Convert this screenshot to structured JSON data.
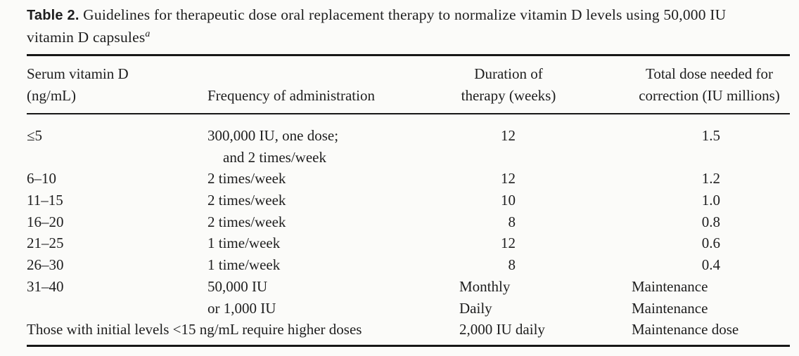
{
  "title": {
    "label": "Table 2.",
    "line1_rest": " Guidelines for therapeutic dose oral replacement therapy to normalize vitamin D levels using 50,000 IU",
    "line2": "vitamin D capsules",
    "footnote_marker": "a"
  },
  "table": {
    "headers": {
      "col1_line1": "Serum vitamin D",
      "col1_line2": "(ng/mL)",
      "col2": "Frequency of administration",
      "col3_line1": "Duration of",
      "col3_line2": "therapy (weeks)",
      "col4_line1": "Total dose needed for",
      "col4_line2": "correction (IU millions)"
    },
    "rows": [
      {
        "serum": "≤5",
        "frequency": "300,000 IU, one dose;",
        "duration": "12",
        "total": "1.5"
      },
      {
        "serum": "",
        "frequency": "and 2 times/week",
        "duration": "",
        "total": ""
      },
      {
        "serum": "6–10",
        "frequency": "2 times/week",
        "duration": "12",
        "total": "1.2"
      },
      {
        "serum": "11–15",
        "frequency": "2 times/week",
        "duration": "10",
        "total": "1.0"
      },
      {
        "serum": "16–20",
        "frequency": "2 times/week",
        "duration": "8",
        "total": "0.8"
      },
      {
        "serum": "21–25",
        "frequency": "1 time/week",
        "duration": "12",
        "total": "0.6"
      },
      {
        "serum": "26–30",
        "frequency": "1 time/week",
        "duration": "8",
        "total": "0.4"
      },
      {
        "serum": "31–40",
        "frequency": "50,000 IU",
        "duration": "Monthly",
        "total": "Maintenance"
      },
      {
        "serum": "",
        "frequency": "or 1,000 IU",
        "duration": "Daily",
        "total": "Maintenance"
      },
      {
        "note": "Those with initial levels <15 ng/mL require higher doses",
        "duration": "2,000 IU daily",
        "total": "Maintenance dose"
      }
    ]
  }
}
